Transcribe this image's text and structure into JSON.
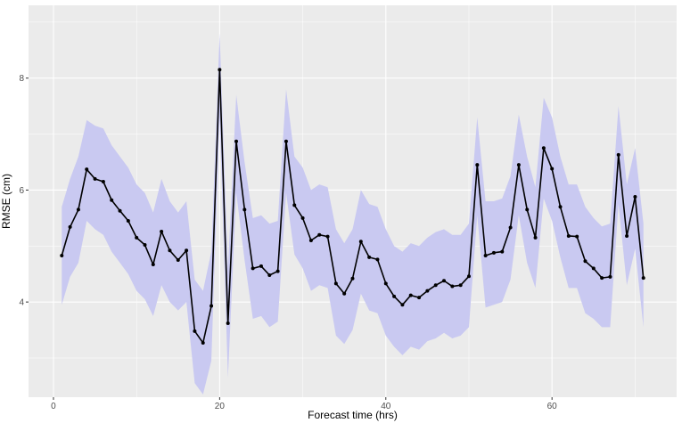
{
  "chart_data": {
    "type": "line",
    "title": "",
    "xlabel": "Forecast time (hrs)",
    "ylabel": "RMSE (cm)",
    "xlim": [
      -3,
      75
    ],
    "ylim": [
      2.3,
      9.3
    ],
    "x_ticks": [
      0,
      20,
      40,
      60
    ],
    "y_ticks": [
      4,
      6,
      8
    ],
    "grid": true,
    "legend": "none",
    "series": [
      {
        "x": [
          1,
          2,
          3,
          4,
          5,
          6,
          7,
          8,
          9,
          10,
          11,
          12,
          13,
          14,
          15,
          16,
          17,
          18,
          19,
          20,
          21,
          22,
          23,
          24,
          25,
          26,
          27,
          28,
          29,
          30,
          31,
          32,
          33,
          34,
          35,
          36,
          37,
          38,
          39,
          40,
          41,
          42,
          43,
          44,
          45,
          46,
          47,
          48,
          49,
          50,
          51,
          52,
          53,
          54,
          55,
          56,
          57,
          58,
          59,
          60,
          61,
          62,
          63,
          64,
          65,
          66,
          67,
          68,
          69,
          70,
          71
        ],
        "y": [
          4.83,
          5.34,
          5.65,
          6.37,
          6.2,
          6.15,
          5.82,
          5.63,
          5.45,
          5.15,
          5.02,
          4.67,
          5.26,
          4.92,
          4.75,
          4.92,
          3.48,
          3.27,
          3.93,
          8.15,
          3.62,
          6.87,
          5.65,
          4.6,
          4.64,
          4.48,
          4.55,
          6.87,
          5.73,
          5.5,
          5.1,
          5.2,
          5.17,
          4.33,
          4.15,
          4.42,
          5.08,
          4.8,
          4.76,
          4.33,
          4.1,
          3.95,
          4.12,
          4.08,
          4.2,
          4.3,
          4.38,
          4.28,
          4.3,
          4.46,
          6.45,
          4.83,
          4.88,
          4.9,
          5.33,
          6.45,
          5.65,
          5.15,
          6.75,
          6.38,
          5.7,
          5.18,
          5.17,
          4.73,
          4.6,
          4.43,
          4.45,
          6.63,
          5.18,
          5.88,
          4.43
        ],
        "upper": [
          5.7,
          6.2,
          6.6,
          7.25,
          7.15,
          7.1,
          6.8,
          6.6,
          6.4,
          6.1,
          5.95,
          5.6,
          6.2,
          5.8,
          5.6,
          5.8,
          4.4,
          4.2,
          4.9,
          8.8,
          4.6,
          7.7,
          6.5,
          5.5,
          5.55,
          5.4,
          5.45,
          7.8,
          6.6,
          6.4,
          6.0,
          6.1,
          6.05,
          5.3,
          5.05,
          5.3,
          6.0,
          5.75,
          5.7,
          5.3,
          5.0,
          4.9,
          5.05,
          5.0,
          5.15,
          5.25,
          5.3,
          5.2,
          5.2,
          5.4,
          7.3,
          5.8,
          5.8,
          5.85,
          6.25,
          7.35,
          6.6,
          6.05,
          7.65,
          7.3,
          6.6,
          6.1,
          6.1,
          5.7,
          5.5,
          5.35,
          5.4,
          7.5,
          6.1,
          6.75,
          5.4
        ],
        "lower": [
          3.95,
          4.45,
          4.7,
          5.45,
          5.3,
          5.2,
          4.9,
          4.7,
          4.5,
          4.2,
          4.05,
          3.75,
          4.3,
          4.0,
          3.85,
          4.0,
          2.55,
          2.35,
          2.95,
          7.3,
          2.65,
          5.95,
          4.75,
          3.7,
          3.75,
          3.55,
          3.65,
          5.95,
          4.85,
          4.6,
          4.2,
          4.3,
          4.25,
          3.4,
          3.25,
          3.5,
          4.15,
          3.85,
          3.8,
          3.4,
          3.2,
          3.05,
          3.2,
          3.15,
          3.3,
          3.35,
          3.45,
          3.35,
          3.4,
          3.55,
          5.55,
          3.9,
          3.95,
          4.0,
          4.4,
          5.55,
          4.7,
          4.25,
          5.85,
          5.45,
          4.8,
          4.25,
          4.25,
          3.8,
          3.7,
          3.55,
          3.55,
          5.75,
          4.3,
          4.95,
          3.55
        ]
      }
    ],
    "colors": {
      "panel": "#ebebeb",
      "grid_major": "#ffffff",
      "ribbon": "#c9c9f1",
      "line": "#000000"
    }
  }
}
